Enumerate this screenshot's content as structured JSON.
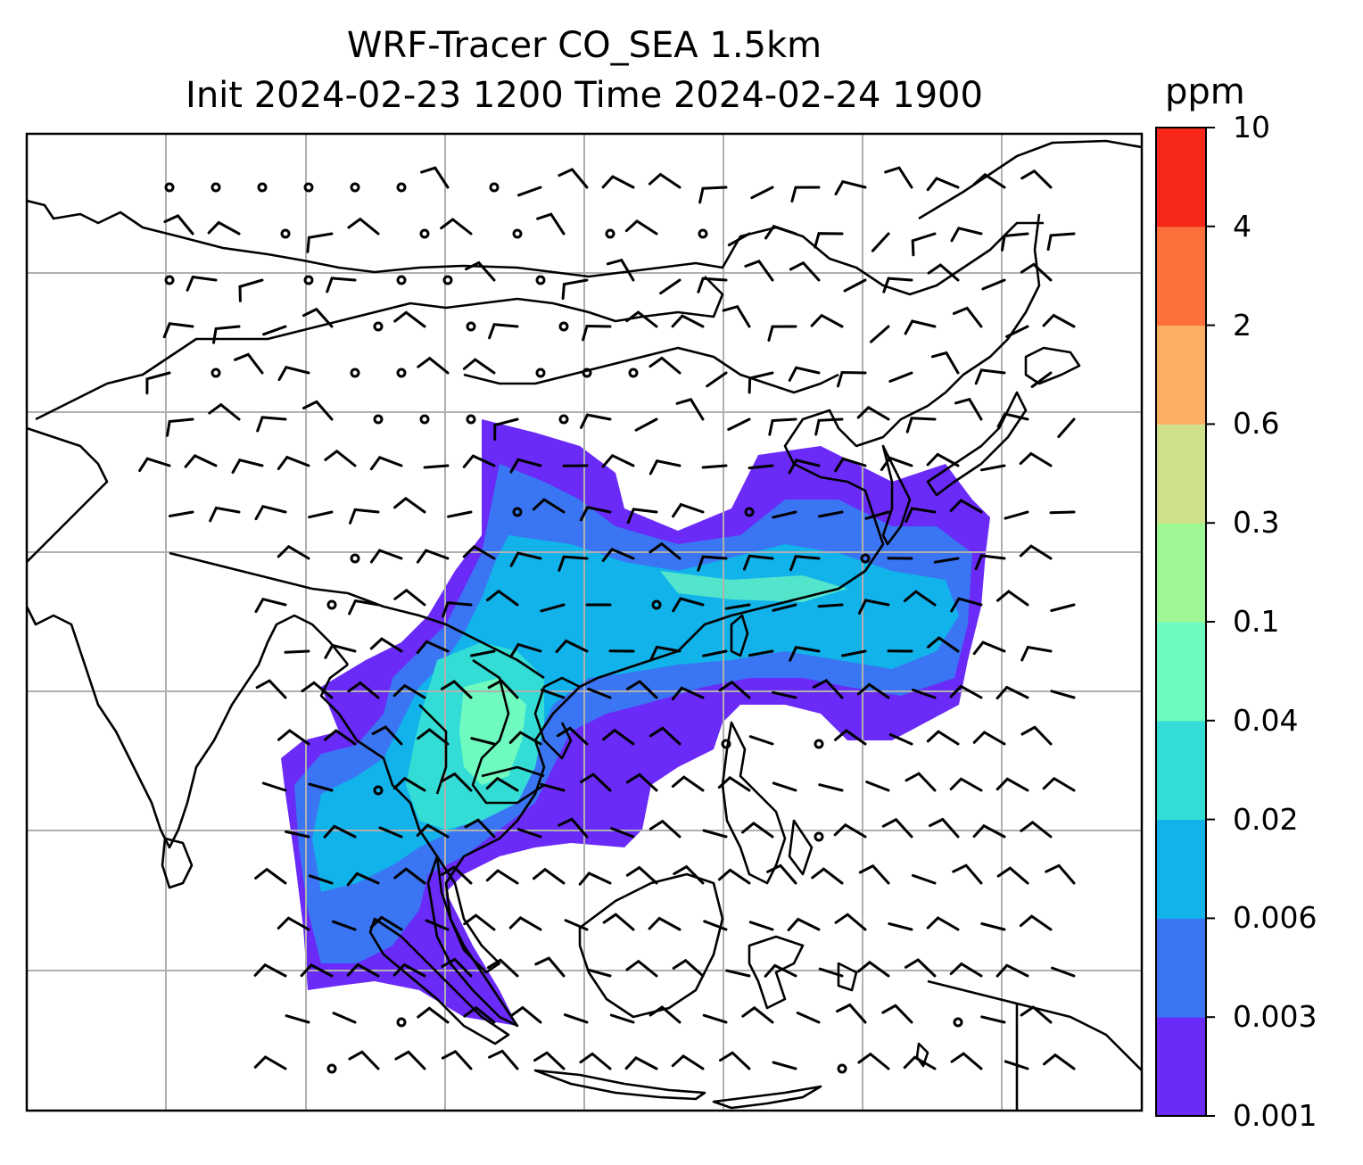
{
  "figure": {
    "title_line1": "WRF-Tracer CO_SEA 1.5km",
    "title_line2": "Init 2024-02-23 1200 Time 2024-02-24 1900"
  },
  "colorbar": {
    "unit": "ppm",
    "ticks": [
      "0.001",
      "0.003",
      "0.006",
      "0.02",
      "0.04",
      "0.1",
      "0.3",
      "0.6",
      "2",
      "4",
      "10"
    ],
    "colors": [
      "#6a2af8",
      "#3a75f3",
      "#12b2ea",
      "#33ddd5",
      "#6ffbbf",
      "#9df893",
      "#cfe08a",
      "#fdb064",
      "#fd6f3b",
      "#f7271a"
    ]
  },
  "map": {
    "gridlines": true,
    "coastline_color": "#000000",
    "grid_color": "#b0b0b0",
    "wind_barb_color": "#000000"
  }
}
